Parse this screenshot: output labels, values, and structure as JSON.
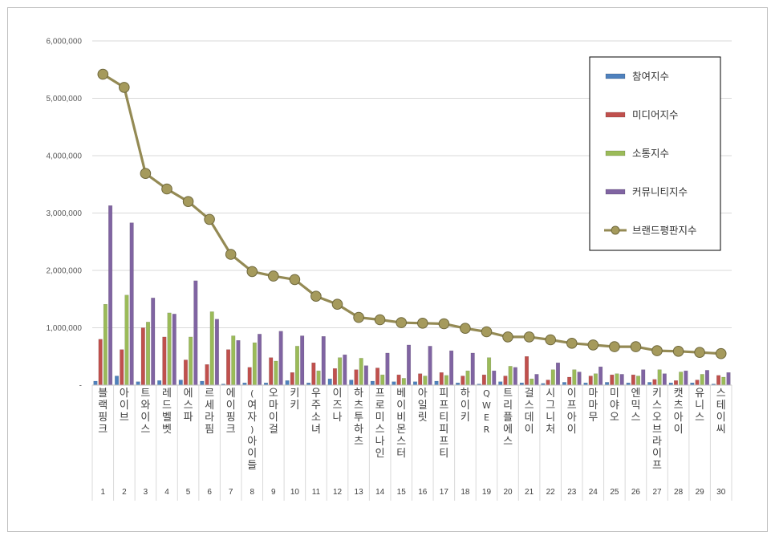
{
  "chart_data": {
    "type": "bar",
    "title": "",
    "xlabel": "",
    "ylabel": "",
    "ylim": [
      0,
      6000000
    ],
    "yticks": [
      "-",
      "1,000,000",
      "2,000,000",
      "3,000,000",
      "4,000,000",
      "5,000,000",
      "6,000,000"
    ],
    "grid": true,
    "legend_position": "top-right",
    "ranks": [
      "1",
      "2",
      "3",
      "4",
      "5",
      "6",
      "7",
      "8",
      "9",
      "10",
      "11",
      "12",
      "13",
      "14",
      "15",
      "16",
      "17",
      "18",
      "19",
      "20",
      "21",
      "22",
      "23",
      "24",
      "25",
      "26",
      "27",
      "28",
      "29",
      "30"
    ],
    "categories": [
      "블랙핑크",
      "아이브",
      "트와이스",
      "레드벨벳",
      "에스파",
      "르세라핌",
      "에이핑크",
      "(여자)아이들",
      "오마이걸",
      "키키",
      "우주소녀",
      "이즈나",
      "하츠투하츠",
      "프로미스나인",
      "베이비몬스터",
      "아일릿",
      "피프티피프티",
      "하이키",
      "QWER",
      "트리플에스",
      "걸스데이",
      "시그니처",
      "이프아이",
      "마마무",
      "미야오",
      "엔믹스",
      "키스오브라이프",
      "캣츠아이",
      "유니스",
      "스테이씨"
    ],
    "series": [
      {
        "name": "참여지수",
        "color": "#4f81bd",
        "kind": "bar",
        "values": [
          70000,
          160000,
          60000,
          80000,
          90000,
          70000,
          20000,
          40000,
          40000,
          80000,
          40000,
          110000,
          90000,
          70000,
          60000,
          60000,
          70000,
          40000,
          20000,
          60000,
          40000,
          30000,
          50000,
          40000,
          50000,
          40000,
          50000,
          40000,
          40000,
          20000
        ]
      },
      {
        "name": "미디어지수",
        "color": "#c0504d",
        "kind": "bar",
        "values": [
          800000,
          620000,
          1000000,
          840000,
          440000,
          360000,
          620000,
          310000,
          480000,
          220000,
          390000,
          290000,
          270000,
          300000,
          180000,
          200000,
          220000,
          160000,
          180000,
          160000,
          500000,
          90000,
          140000,
          160000,
          180000,
          180000,
          100000,
          80000,
          90000,
          170000
        ]
      },
      {
        "name": "소통지수",
        "color": "#9bbb59",
        "kind": "bar",
        "values": [
          1410000,
          1570000,
          1100000,
          1260000,
          840000,
          1280000,
          860000,
          740000,
          420000,
          680000,
          250000,
          480000,
          470000,
          180000,
          120000,
          160000,
          170000,
          250000,
          480000,
          330000,
          110000,
          270000,
          270000,
          200000,
          200000,
          160000,
          270000,
          230000,
          190000,
          140000
        ]
      },
      {
        "name": "커뮤니티지수",
        "color": "#8064a2",
        "kind": "bar",
        "values": [
          3130000,
          2830000,
          1520000,
          1240000,
          1820000,
          1150000,
          780000,
          890000,
          940000,
          860000,
          850000,
          530000,
          340000,
          560000,
          700000,
          680000,
          600000,
          560000,
          250000,
          310000,
          190000,
          390000,
          230000,
          320000,
          190000,
          270000,
          200000,
          250000,
          260000,
          220000
        ]
      },
      {
        "name": "브랜드평판지수",
        "color": "#948a54",
        "kind": "line",
        "values": [
          5420000,
          5190000,
          3690000,
          3420000,
          3200000,
          2890000,
          2280000,
          1980000,
          1900000,
          1840000,
          1550000,
          1410000,
          1180000,
          1140000,
          1090000,
          1080000,
          1070000,
          990000,
          930000,
          840000,
          840000,
          790000,
          730000,
          700000,
          670000,
          670000,
          600000,
          590000,
          570000,
          550000
        ]
      }
    ]
  }
}
